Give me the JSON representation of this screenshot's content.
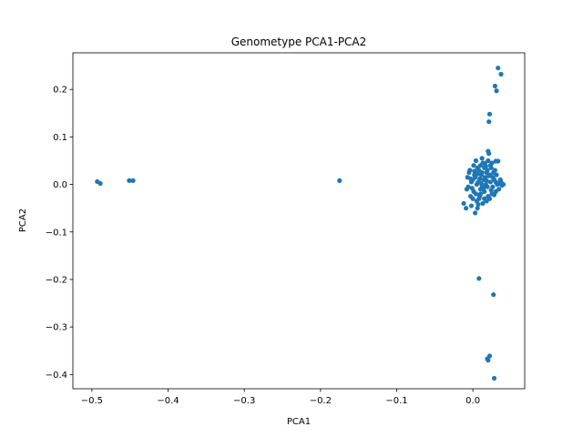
{
  "chart_data": {
    "type": "scatter",
    "title": "Genometype PCA1-PCA2",
    "xlabel": "PCA1",
    "ylabel": "PCA2",
    "xlim": [
      -0.525,
      0.068
    ],
    "ylim": [
      -0.43,
      0.277
    ],
    "xticks": [
      -0.5,
      -0.4,
      -0.3,
      -0.2,
      -0.1,
      0.0
    ],
    "yticks": [
      -0.4,
      -0.3,
      -0.2,
      -0.1,
      0.0,
      0.1,
      0.2
    ],
    "xtick_labels": [
      "−0.5",
      "−0.4",
      "−0.3",
      "−0.2",
      "−0.1",
      "0.0"
    ],
    "ytick_labels": [
      "−0.4",
      "−0.3",
      "−0.2",
      "−0.1",
      "0.0",
      "0.1",
      "0.2"
    ],
    "grid": false,
    "marker_color": "#1f77b4",
    "series": [
      {
        "points": [
          [
            -0.493,
            0.006
          ],
          [
            -0.489,
            0.002
          ],
          [
            -0.451,
            0.008
          ],
          [
            -0.446,
            0.008
          ],
          [
            -0.175,
            0.008
          ],
          [
            0.033,
            0.245
          ],
          [
            0.037,
            0.232
          ],
          [
            0.029,
            0.207
          ],
          [
            0.031,
            0.197
          ],
          [
            0.022,
            0.148
          ],
          [
            0.021,
            0.132
          ],
          [
            0.008,
            -0.198
          ],
          [
            0.027,
            -0.232
          ],
          [
            0.022,
            -0.361
          ],
          [
            0.019,
            -0.367
          ],
          [
            0.02,
            -0.37
          ],
          [
            0.028,
            -0.408
          ],
          [
            -0.012,
            -0.04
          ],
          [
            -0.009,
            -0.05
          ],
          [
            -0.002,
            -0.045
          ],
          [
            0.003,
            -0.06
          ],
          [
            0.006,
            -0.05
          ],
          [
            -0.003,
            -0.025
          ],
          [
            0.001,
            -0.015
          ],
          [
            -0.008,
            -0.01
          ],
          [
            0.01,
            -0.02
          ],
          [
            0.015,
            -0.03
          ],
          [
            0.012,
            -0.005
          ],
          [
            0.005,
            0.0
          ],
          [
            0.0,
            0.01
          ],
          [
            0.002,
            0.02
          ],
          [
            -0.005,
            0.025
          ],
          [
            0.008,
            0.03
          ],
          [
            0.01,
            0.04
          ],
          [
            0.004,
            0.05
          ],
          [
            0.012,
            0.055
          ],
          [
            0.02,
            0.05
          ],
          [
            0.025,
            0.045
          ],
          [
            0.03,
            0.049
          ],
          [
            0.033,
            0.049
          ],
          [
            0.02,
            0.07
          ],
          [
            0.021,
            0.065
          ],
          [
            0.015,
            0.035
          ],
          [
            0.018,
            0.025
          ],
          [
            0.022,
            0.02
          ],
          [
            0.026,
            0.015
          ],
          [
            0.028,
            0.01
          ],
          [
            0.03,
            0.005
          ],
          [
            0.032,
            0.0
          ],
          [
            0.035,
            0.003
          ],
          [
            0.038,
            -0.002
          ],
          [
            0.034,
            -0.01
          ],
          [
            0.03,
            -0.015
          ],
          [
            0.025,
            -0.02
          ],
          [
            0.02,
            -0.025
          ],
          [
            0.015,
            -0.015
          ],
          [
            0.01,
            -0.01
          ],
          [
            0.007,
            0.005
          ],
          [
            0.003,
            0.015
          ],
          [
            -0.002,
            0.005
          ],
          [
            -0.006,
            -0.005
          ],
          [
            0.0,
            -0.03
          ],
          [
            0.005,
            -0.035
          ],
          [
            0.009,
            -0.025
          ],
          [
            0.014,
            0.01
          ],
          [
            0.017,
            0.0
          ],
          [
            0.019,
            -0.005
          ],
          [
            0.023,
            0.005
          ],
          [
            0.027,
            0.025
          ],
          [
            0.029,
            0.03
          ],
          [
            0.024,
            0.035
          ],
          [
            0.016,
            0.045
          ],
          [
            0.011,
            0.02
          ],
          [
            0.006,
            0.035
          ],
          [
            0.001,
            0.04
          ],
          [
            -0.004,
            0.03
          ],
          [
            -0.007,
            0.015
          ],
          [
            0.013,
            -0.04
          ],
          [
            0.018,
            -0.035
          ],
          [
            0.022,
            -0.03
          ],
          [
            0.026,
            -0.005
          ],
          [
            0.031,
            0.02
          ],
          [
            0.036,
            0.01
          ],
          [
            0.04,
            0.0
          ],
          [
            0.037,
            0.005
          ],
          [
            0.004,
            -0.02
          ],
          [
            0.008,
            -0.03
          ],
          [
            0.012,
            0.025
          ],
          [
            0.016,
            0.015
          ],
          [
            0.019,
            0.03
          ],
          [
            0.023,
            0.04
          ],
          [
            0.009,
            0.012
          ],
          [
            0.011,
            0.002
          ],
          [
            0.014,
            -0.008
          ],
          [
            0.018,
            0.008
          ],
          [
            0.021,
            0.018
          ],
          [
            0.002,
            0.028
          ],
          [
            0.006,
            0.022
          ],
          [
            -0.001,
            -0.008
          ],
          [
            0.024,
            -0.012
          ],
          [
            0.028,
            -0.022
          ],
          [
            -0.003,
            0.012
          ],
          [
            0.013,
            0.045
          ],
          [
            0.017,
            0.038
          ],
          [
            0.007,
            -0.042
          ]
        ]
      }
    ]
  }
}
